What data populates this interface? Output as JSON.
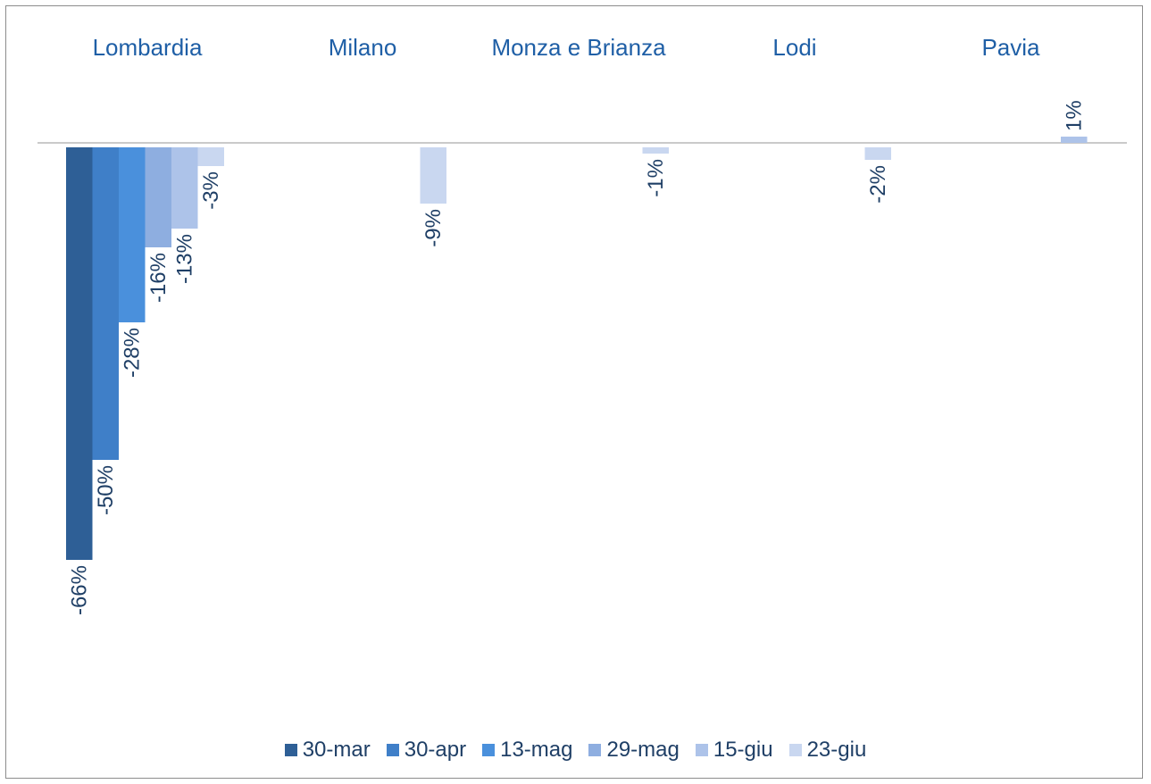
{
  "chart_data": {
    "type": "bar",
    "categories": [
      "Lombardia",
      "Milano",
      "Monza e Brianza",
      "Lodi",
      "Pavia"
    ],
    "series": [
      {
        "name": "30-mar",
        "color": "#2e5f96",
        "values": [
          -66,
          null,
          null,
          null,
          null
        ]
      },
      {
        "name": "30-apr",
        "color": "#3f7fc8",
        "values": [
          -50,
          null,
          null,
          null,
          null
        ]
      },
      {
        "name": "13-mag",
        "color": "#4a90dc",
        "values": [
          -28,
          null,
          null,
          null,
          null
        ]
      },
      {
        "name": "29-mag",
        "color": "#8eaee0",
        "values": [
          -16,
          null,
          null,
          null,
          null
        ]
      },
      {
        "name": "15-giu",
        "color": "#adc3e9",
        "values": [
          -13,
          null,
          null,
          null,
          1
        ]
      },
      {
        "name": "23-giu",
        "color": "#c9d7f0",
        "values": [
          -3,
          -9,
          -1,
          -2,
          null
        ]
      }
    ],
    "data_labels": [
      [
        "-66%",
        null,
        null,
        null,
        null
      ],
      [
        "-50%",
        null,
        null,
        null,
        null
      ],
      [
        "-28%",
        null,
        null,
        null,
        null
      ],
      [
        "-16%",
        null,
        null,
        null,
        null
      ],
      [
        "-13%",
        null,
        null,
        null,
        "1%"
      ],
      [
        "-3%",
        "-9%",
        "-1%",
        "-2%",
        null
      ]
    ],
    "ylim": [
      -70,
      5
    ],
    "legend_position": "bottom",
    "grid": false,
    "title": "",
    "xlabel": "",
    "ylabel": ""
  }
}
